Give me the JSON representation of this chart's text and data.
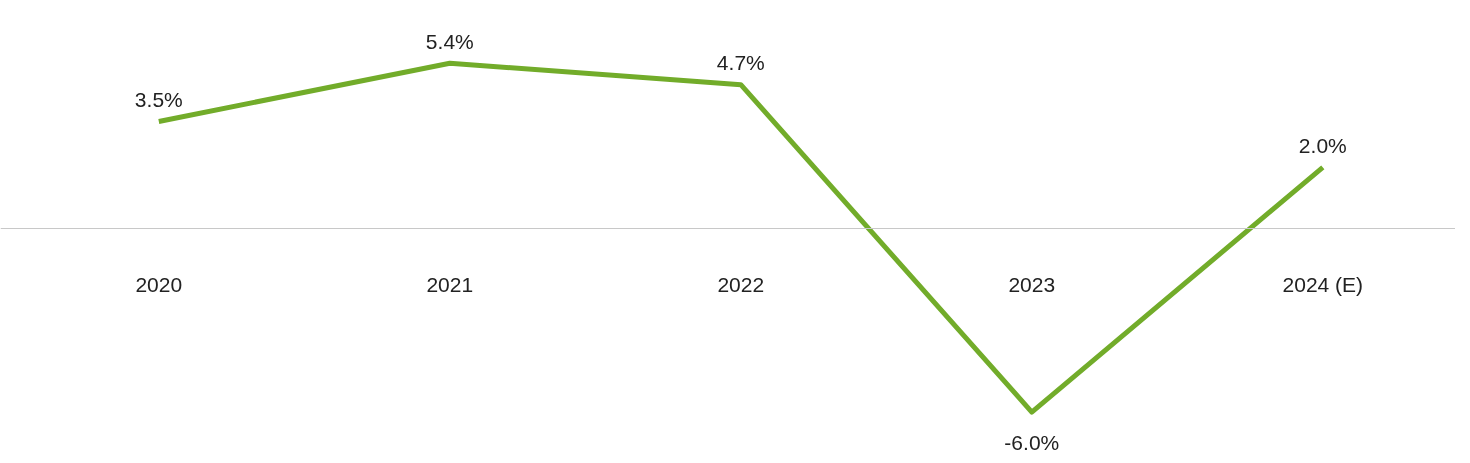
{
  "chart_data": {
    "type": "line",
    "categories": [
      "2020",
      "2021",
      "2022",
      "2023",
      "2024 (E)"
    ],
    "series": [
      {
        "color": "#72ac2a",
        "values": [
          3.5,
          5.4,
          4.7,
          -6.0,
          2.0
        ],
        "value_labels": [
          "3.5%",
          "5.4%",
          "4.7%",
          "-6.0%",
          "2.0%"
        ]
      }
    ],
    "grid": false,
    "marker": "none",
    "line_style": "solid"
  }
}
